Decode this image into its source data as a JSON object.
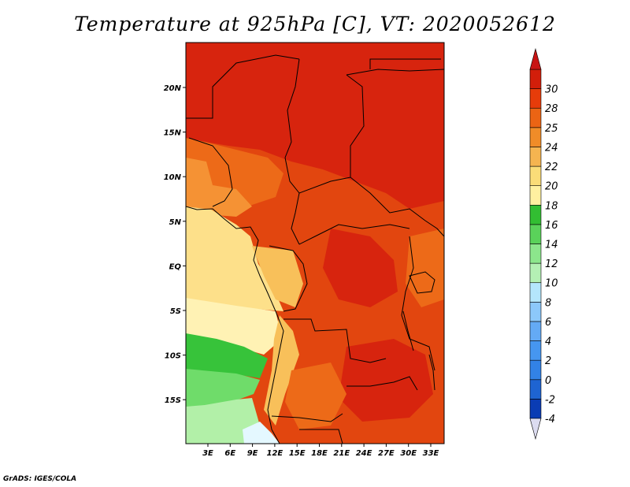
{
  "title": "Temperature at 925hPa [C], VT: 2020052612",
  "credit": "GrADS: IGES/COLA",
  "map": {
    "lon_labels": [
      "3E",
      "6E",
      "9E",
      "12E",
      "15E",
      "18E",
      "21E",
      "24E",
      "27E",
      "30E",
      "33E"
    ],
    "lat_labels": [
      "20N",
      "15N",
      "10N",
      "5N",
      "EQ",
      "5S",
      "10S",
      "15S"
    ]
  },
  "colorbar": {
    "levels": [
      "-4",
      "-2",
      "0",
      "2",
      "4",
      "6",
      "8",
      "10",
      "12",
      "14",
      "16",
      "18",
      "20",
      "22",
      "24",
      "25",
      "28",
      "30"
    ],
    "colors": [
      "#0a0a78",
      "#0a3cb4",
      "#1e64d2",
      "#3282e6",
      "#4696f0",
      "#64aaf5",
      "#8cc8fa",
      "#b4e6fc",
      "#b4f0b4",
      "#8ce68c",
      "#5ad25a",
      "#32be32",
      "#fff0a0",
      "#fadc78",
      "#f5b450",
      "#f08c28",
      "#eb6414",
      "#e63c0a",
      "#d21e0a"
    ],
    "bottom_color": "#dcdcf0",
    "top_color": "#c81414"
  },
  "legend_colors": {
    "hot_north": "#d7240e",
    "deep_orange": "#e2460f",
    "orange": "#ed6a18",
    "light_orange": "#f59234",
    "tan": "#f8c05a",
    "pale_yellow": "#fde08a",
    "cream": "#fff2b4",
    "green_dark": "#37c33a",
    "green_mid": "#6fdc6a",
    "green_light": "#b2f0a8",
    "ice": "#e4f8ff"
  }
}
